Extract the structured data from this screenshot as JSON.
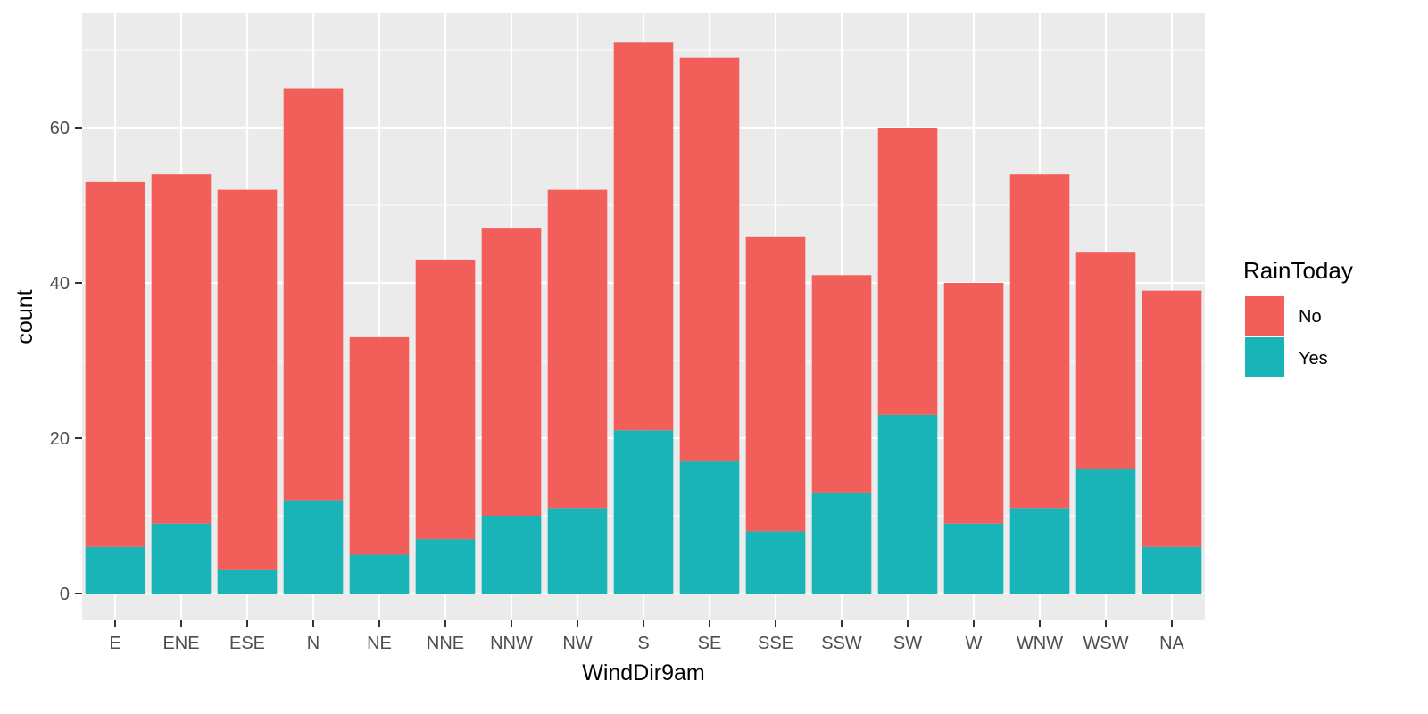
{
  "chart_data": {
    "type": "bar",
    "stacked": true,
    "xlabel": "WindDir9am",
    "ylabel": "count",
    "ylim": [
      0,
      74.5
    ],
    "yticks": [
      "0",
      "20",
      "40",
      "60"
    ],
    "grid": true,
    "legend": {
      "title": "RainToday",
      "position": "right"
    },
    "categories": [
      "E",
      "ENE",
      "ESE",
      "N",
      "NE",
      "NNE",
      "NNW",
      "NW",
      "S",
      "SE",
      "SSE",
      "SSW",
      "SW",
      "W",
      "WNW",
      "WSW",
      "NA"
    ],
    "series": [
      {
        "name": "No",
        "color": "#f25f5a",
        "values": [
          47,
          45,
          49,
          53,
          28,
          36,
          37,
          41,
          50,
          52,
          38,
          28,
          37,
          31,
          43,
          28,
          33
        ]
      },
      {
        "name": "Yes",
        "color": "#19b4b8",
        "values": [
          6,
          9,
          3,
          12,
          5,
          7,
          10,
          11,
          21,
          17,
          8,
          13,
          23,
          9,
          11,
          16,
          6
        ]
      }
    ],
    "stack_order_bottom_to_top": [
      "Yes",
      "No"
    ]
  }
}
